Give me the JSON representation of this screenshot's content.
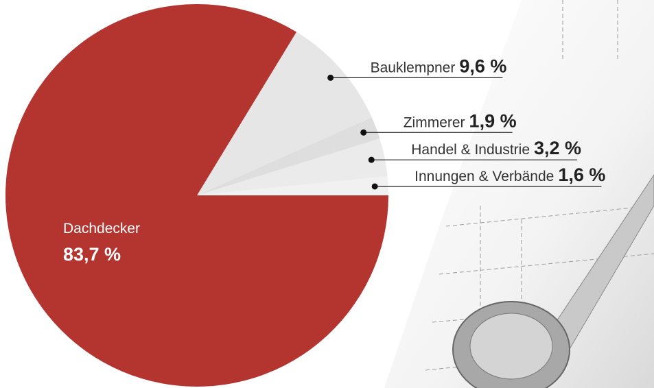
{
  "chart_data": {
    "type": "pie",
    "categories": [
      "Innungen & Verbände",
      "Handel & Industrie",
      "Zimmerer",
      "Bauklempner",
      "Dachdecker"
    ],
    "values": [
      1.6,
      3.2,
      1.9,
      9.6,
      83.7
    ],
    "value_labels": [
      "1,6 %",
      "3,2 %",
      "1,9 %",
      "9,6 %",
      "83,7 %"
    ],
    "colors": [
      "#f1f1f1",
      "#ebebeb",
      "#dedede",
      "#e6e6e6",
      "#b43430"
    ]
  }
}
